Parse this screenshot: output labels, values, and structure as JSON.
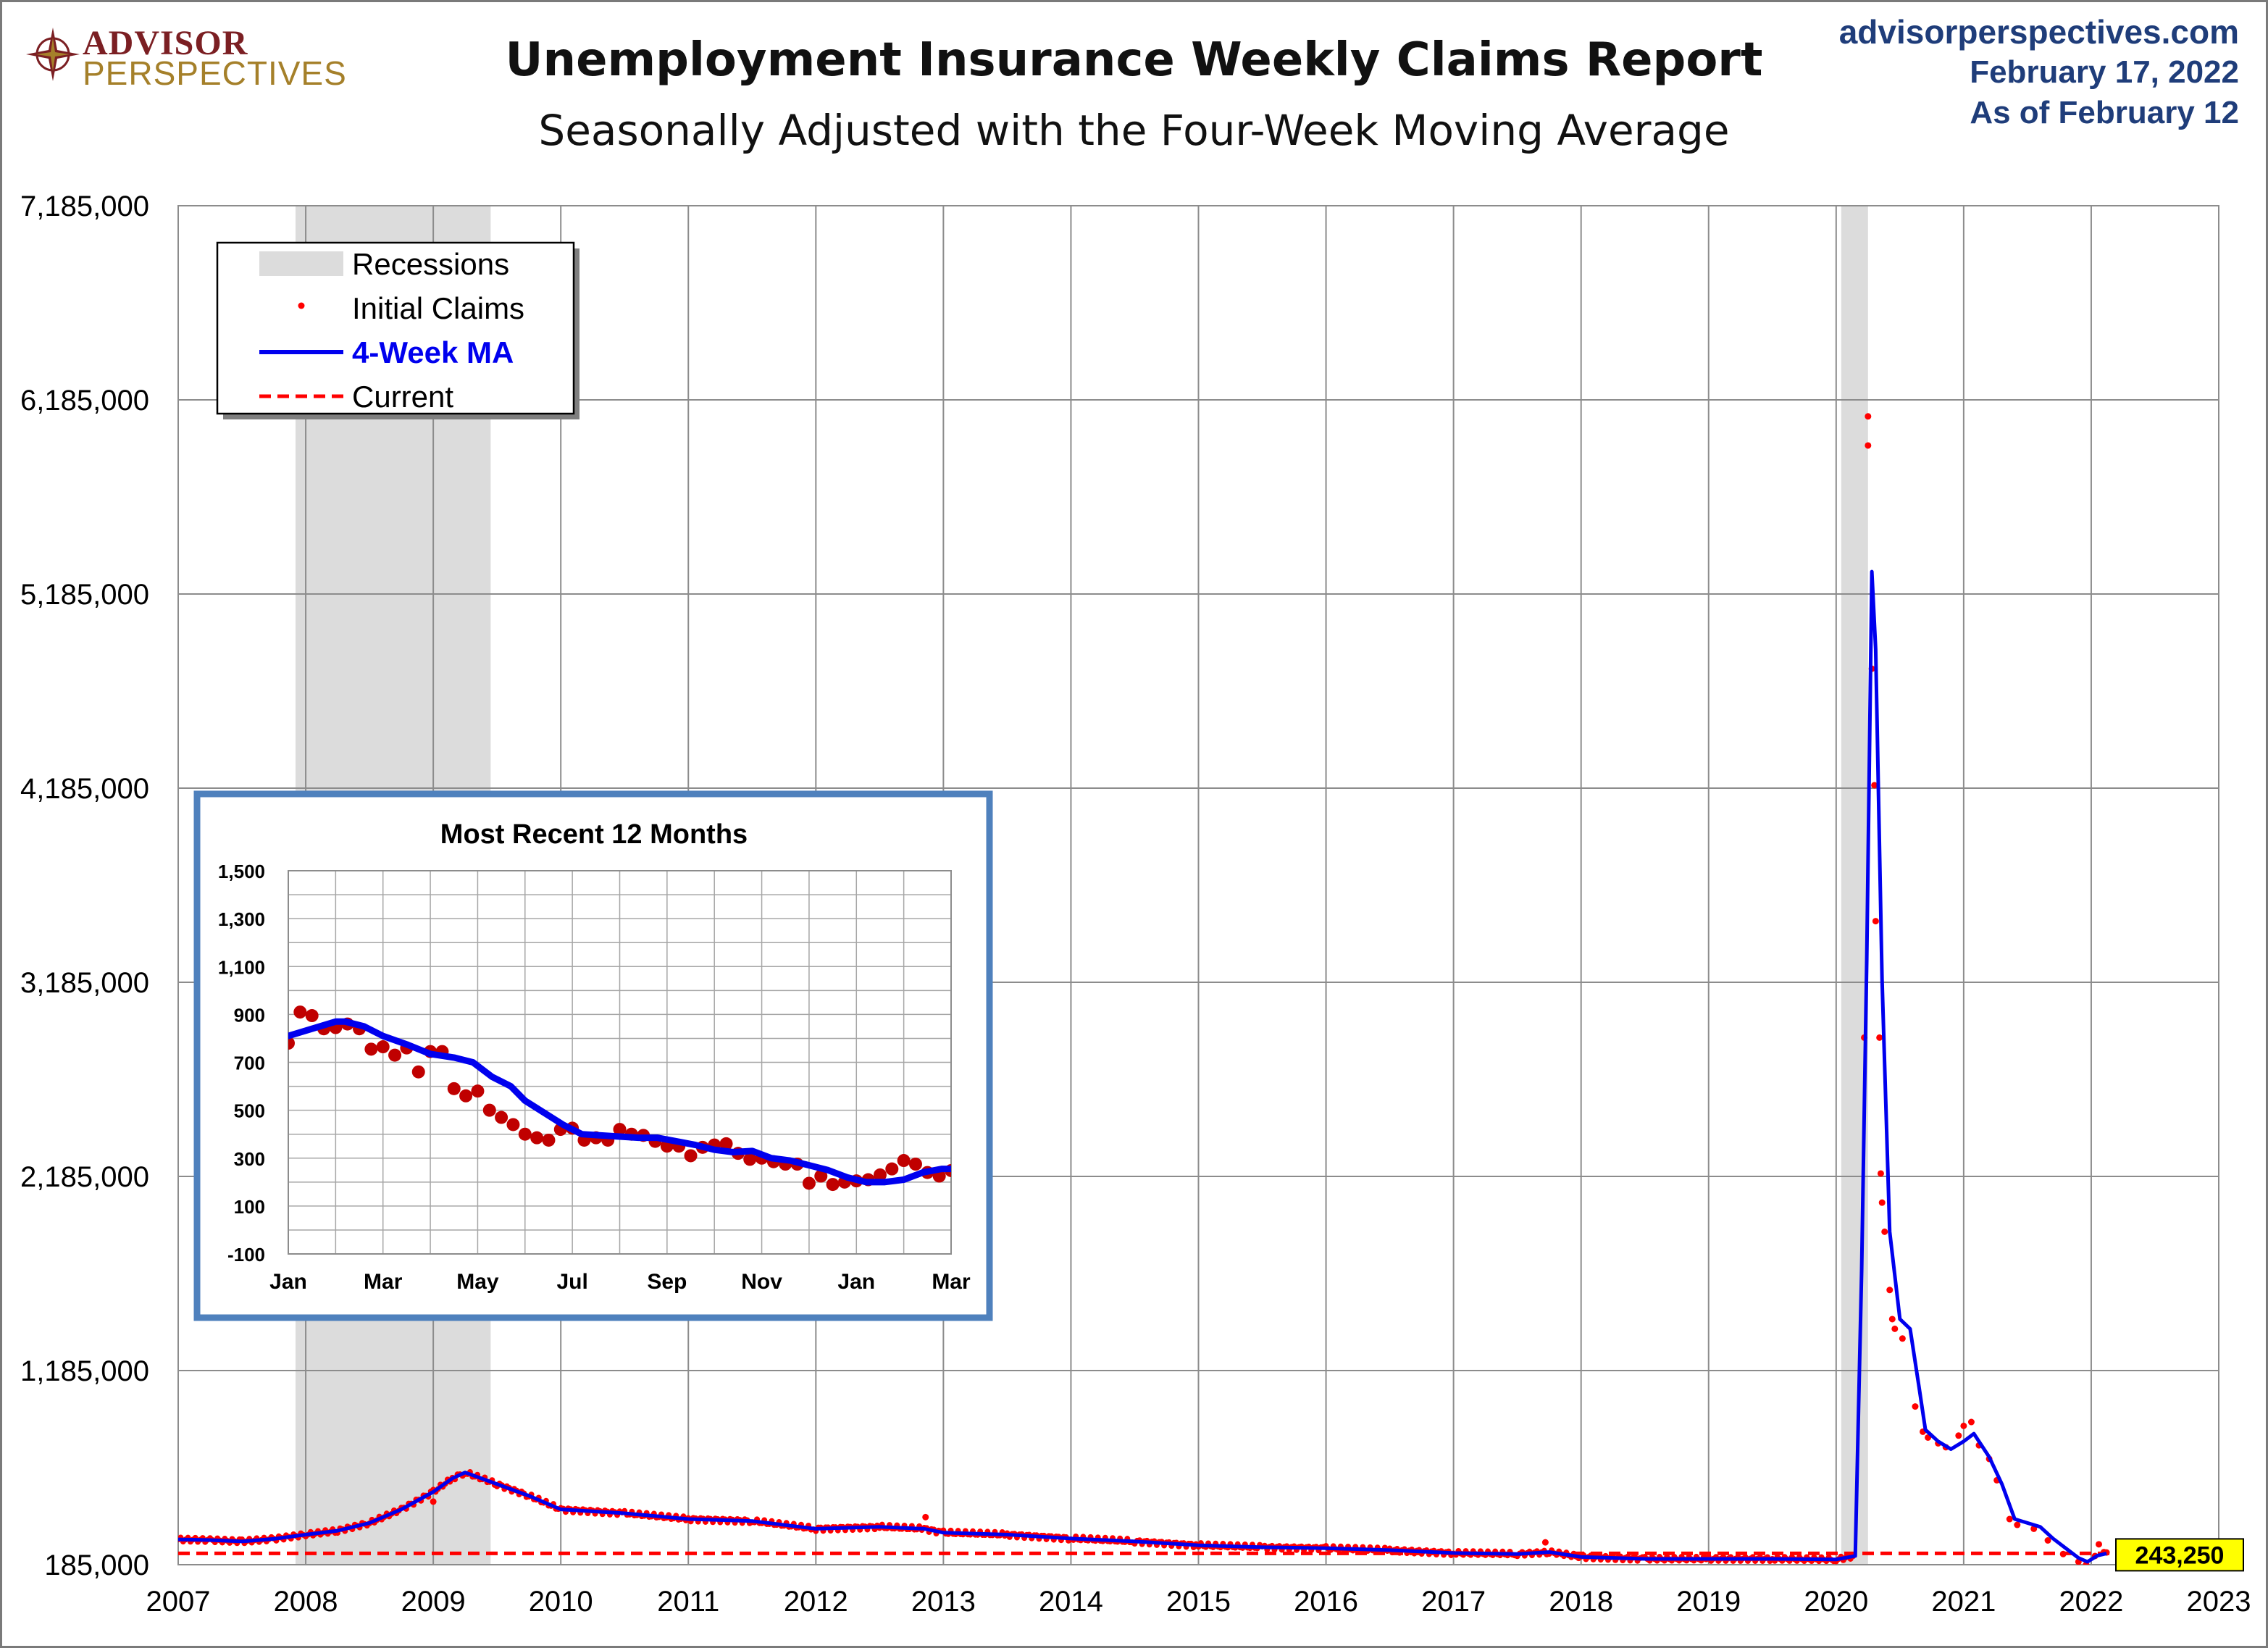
{
  "header": {
    "logo_top": "ADVISOR",
    "logo_bottom": "PERSPECTIVES",
    "logo_icon": "compass-star-icon",
    "title": "Unemployment Insurance Weekly Claims Report",
    "subtitle": "Seasonally Adjusted with the Four-Week Moving Average",
    "source": "advisorperspectives.com",
    "date": "February 17, 2022",
    "as_of": "As of February 12"
  },
  "chart_data": [
    {
      "type": "line",
      "title": "Unemployment Insurance Weekly Claims Report",
      "subtitle": "Seasonally Adjusted with the Four-Week Moving Average",
      "xlabel": "",
      "ylabel": "",
      "xlim": [
        2007,
        2023
      ],
      "ylim": [
        185000,
        7185000
      ],
      "y_ticks": [
        "185,000",
        "1,185,000",
        "2,185,000",
        "3,185,000",
        "4,185,000",
        "5,185,000",
        "6,185,000",
        "7,185,000"
      ],
      "x_ticks": [
        "2007",
        "2008",
        "2009",
        "2010",
        "2011",
        "2012",
        "2013",
        "2014",
        "2015",
        "2016",
        "2017",
        "2018",
        "2019",
        "2020",
        "2021",
        "2022",
        "2023"
      ],
      "grid": true,
      "legend_position": "top-left",
      "legend": [
        "Recessions",
        "Initial Claims",
        "4-Week MA",
        "Current"
      ],
      "colors": {
        "recession": "#dcdcdc",
        "initial_claims": "#ff0000",
        "ma": "#0000ee",
        "current": "#ff0000",
        "current_label_bg": "#ffff00"
      },
      "recessions": [
        [
          2007.92,
          2009.45
        ],
        [
          2020.04,
          2020.25
        ]
      ],
      "current_value": 243250,
      "current_label": "243,250",
      "series": [
        {
          "name": "4-Week MA",
          "points": [
            [
              2007.0,
              315000
            ],
            [
              2007.25,
              312000
            ],
            [
              2007.5,
              305000
            ],
            [
              2007.75,
              318000
            ],
            [
              2008.0,
              340000
            ],
            [
              2008.25,
              360000
            ],
            [
              2008.5,
              400000
            ],
            [
              2008.75,
              470000
            ],
            [
              2009.0,
              560000
            ],
            [
              2009.15,
              630000
            ],
            [
              2009.25,
              660000
            ],
            [
              2009.5,
              600000
            ],
            [
              2009.75,
              540000
            ],
            [
              2010.0,
              470000
            ],
            [
              2010.5,
              450000
            ],
            [
              2011.0,
              420000
            ],
            [
              2011.5,
              410000
            ],
            [
              2012.0,
              370000
            ],
            [
              2012.5,
              380000
            ],
            [
              2012.85,
              370000
            ],
            [
              2013.0,
              350000
            ],
            [
              2013.5,
              340000
            ],
            [
              2014.0,
              320000
            ],
            [
              2014.5,
              305000
            ],
            [
              2015.0,
              285000
            ],
            [
              2015.5,
              275000
            ],
            [
              2016.0,
              270000
            ],
            [
              2016.5,
              260000
            ],
            [
              2017.0,
              245000
            ],
            [
              2017.5,
              240000
            ],
            [
              2017.75,
              250000
            ],
            [
              2018.0,
              225000
            ],
            [
              2018.5,
              215000
            ],
            [
              2019.0,
              215000
            ],
            [
              2019.5,
              215000
            ],
            [
              2020.0,
              212000
            ],
            [
              2020.15,
              230000
            ],
            [
              2020.2,
              1700000
            ],
            [
              2020.24,
              3300000
            ],
            [
              2020.28,
              5300000
            ],
            [
              2020.31,
              4900000
            ],
            [
              2020.36,
              3200000
            ],
            [
              2020.42,
              1900000
            ],
            [
              2020.5,
              1450000
            ],
            [
              2020.58,
              1400000
            ],
            [
              2020.65,
              1100000
            ],
            [
              2020.7,
              880000
            ],
            [
              2020.8,
              820000
            ],
            [
              2020.9,
              780000
            ],
            [
              2021.0,
              820000
            ],
            [
              2021.08,
              860000
            ],
            [
              2021.2,
              740000
            ],
            [
              2021.3,
              600000
            ],
            [
              2021.4,
              420000
            ],
            [
              2021.5,
              400000
            ],
            [
              2021.6,
              380000
            ],
            [
              2021.7,
              320000
            ],
            [
              2021.8,
              270000
            ],
            [
              2021.9,
              220000
            ],
            [
              2021.97,
              200000
            ],
            [
              2022.05,
              232000
            ],
            [
              2022.12,
              243250
            ]
          ]
        },
        {
          "name": "Initial Claims",
          "points": [
            [
              2020.22,
              2900000
            ],
            [
              2020.25,
              6100000
            ],
            [
              2020.25,
              5950000
            ],
            [
              2020.28,
              4800000
            ],
            [
              2020.3,
              4200000
            ],
            [
              2020.31,
              3500000
            ],
            [
              2020.34,
              2900000
            ],
            [
              2020.35,
              2200000
            ],
            [
              2020.36,
              2050000
            ],
            [
              2020.38,
              1900000
            ],
            [
              2020.42,
              1600000
            ],
            [
              2020.44,
              1450000
            ],
            [
              2020.46,
              1400000
            ],
            [
              2020.52,
              1350000
            ],
            [
              2020.62,
              1000000
            ],
            [
              2020.68,
              870000
            ],
            [
              2020.72,
              840000
            ],
            [
              2020.8,
              810000
            ],
            [
              2020.86,
              790000
            ],
            [
              2020.96,
              850000
            ],
            [
              2021.0,
              900000
            ],
            [
              2021.06,
              920000
            ],
            [
              2021.12,
              800000
            ],
            [
              2021.2,
              730000
            ],
            [
              2021.26,
              620000
            ],
            [
              2021.36,
              420000
            ],
            [
              2021.42,
              390000
            ],
            [
              2021.55,
              370000
            ],
            [
              2021.66,
              310000
            ],
            [
              2021.78,
              240000
            ],
            [
              2021.9,
              200000
            ],
            [
              2021.96,
              185000
            ],
            [
              2022.03,
              230000
            ],
            [
              2022.06,
              290000
            ],
            [
              2022.1,
              250000
            ],
            [
              2022.12,
              248000
            ],
            [
              2017.72,
              300000
            ],
            [
              2009.0,
              510000
            ],
            [
              2012.86,
              430000
            ]
          ]
        }
      ]
    },
    {
      "type": "line",
      "title": "Most Recent 12 Months",
      "xlabel": "",
      "ylabel": "",
      "xlim": [
        0,
        14
      ],
      "ylim": [
        -100,
        1500
      ],
      "y_ticks": [
        "-100",
        "100",
        "300",
        "500",
        "700",
        "900",
        "1,100",
        "1,300",
        "1,500"
      ],
      "x_ticks": [
        "Jan",
        "Mar",
        "May",
        "Jul",
        "Sep",
        "Nov",
        "Jan",
        "Mar"
      ],
      "grid": true,
      "series": [
        {
          "name": "4-Week MA",
          "points": [
            [
              0.0,
              810
            ],
            [
              0.5,
              840
            ],
            [
              1.0,
              870
            ],
            [
              1.2,
              870
            ],
            [
              1.6,
              850
            ],
            [
              2.0,
              810
            ],
            [
              2.5,
              775
            ],
            [
              3.0,
              735
            ],
            [
              3.5,
              720
            ],
            [
              3.9,
              700
            ],
            [
              4.3,
              640
            ],
            [
              4.7,
              600
            ],
            [
              5.0,
              540
            ],
            [
              5.4,
              490
            ],
            [
              5.8,
              440
            ],
            [
              6.2,
              400
            ],
            [
              6.6,
              395
            ],
            [
              7.0,
              390
            ],
            [
              7.4,
              385
            ],
            [
              7.8,
              385
            ],
            [
              8.2,
              370
            ],
            [
              8.6,
              355
            ],
            [
              9.0,
              335
            ],
            [
              9.4,
              325
            ],
            [
              9.8,
              330
            ],
            [
              10.2,
              300
            ],
            [
              10.6,
              290
            ],
            [
              11.0,
              270
            ],
            [
              11.4,
              250
            ],
            [
              11.8,
              220
            ],
            [
              12.2,
              200
            ],
            [
              12.6,
              200
            ],
            [
              13.0,
              210
            ],
            [
              13.4,
              240
            ],
            [
              13.8,
              255
            ],
            [
              14.0,
              255
            ]
          ]
        },
        {
          "name": "Initial Claims",
          "points": [
            [
              0.0,
              780
            ],
            [
              0.25,
              910
            ],
            [
              0.5,
              895
            ],
            [
              0.75,
              840
            ],
            [
              1.0,
              845
            ],
            [
              1.25,
              860
            ],
            [
              1.5,
              840
            ],
            [
              1.75,
              755
            ],
            [
              2.0,
              765
            ],
            [
              2.25,
              730
            ],
            [
              2.5,
              760
            ],
            [
              2.75,
              660
            ],
            [
              3.0,
              745
            ],
            [
              3.25,
              745
            ],
            [
              3.5,
              590
            ],
            [
              3.75,
              560
            ],
            [
              4.0,
              580
            ],
            [
              4.25,
              500
            ],
            [
              4.5,
              470
            ],
            [
              4.75,
              440
            ],
            [
              5.0,
              400
            ],
            [
              5.25,
              385
            ],
            [
              5.5,
              375
            ],
            [
              5.75,
              420
            ],
            [
              6.0,
              425
            ],
            [
              6.25,
              375
            ],
            [
              6.5,
              385
            ],
            [
              6.75,
              375
            ],
            [
              7.0,
              420
            ],
            [
              7.25,
              400
            ],
            [
              7.5,
              395
            ],
            [
              7.75,
              370
            ],
            [
              8.0,
              350
            ],
            [
              8.25,
              350
            ],
            [
              8.5,
              310
            ],
            [
              8.75,
              345
            ],
            [
              9.0,
              355
            ],
            [
              9.25,
              360
            ],
            [
              9.5,
              320
            ],
            [
              9.75,
              295
            ],
            [
              10.0,
              300
            ],
            [
              10.25,
              285
            ],
            [
              10.5,
              275
            ],
            [
              10.75,
              275
            ],
            [
              11.0,
              195
            ],
            [
              11.25,
              225
            ],
            [
              11.5,
              190
            ],
            [
              11.75,
              200
            ],
            [
              12.0,
              205
            ],
            [
              12.25,
              210
            ],
            [
              12.5,
              230
            ],
            [
              12.75,
              255
            ],
            [
              13.0,
              290
            ],
            [
              13.25,
              275
            ],
            [
              13.5,
              240
            ],
            [
              13.75,
              225
            ],
            [
              14.0,
              248
            ]
          ]
        }
      ]
    }
  ]
}
